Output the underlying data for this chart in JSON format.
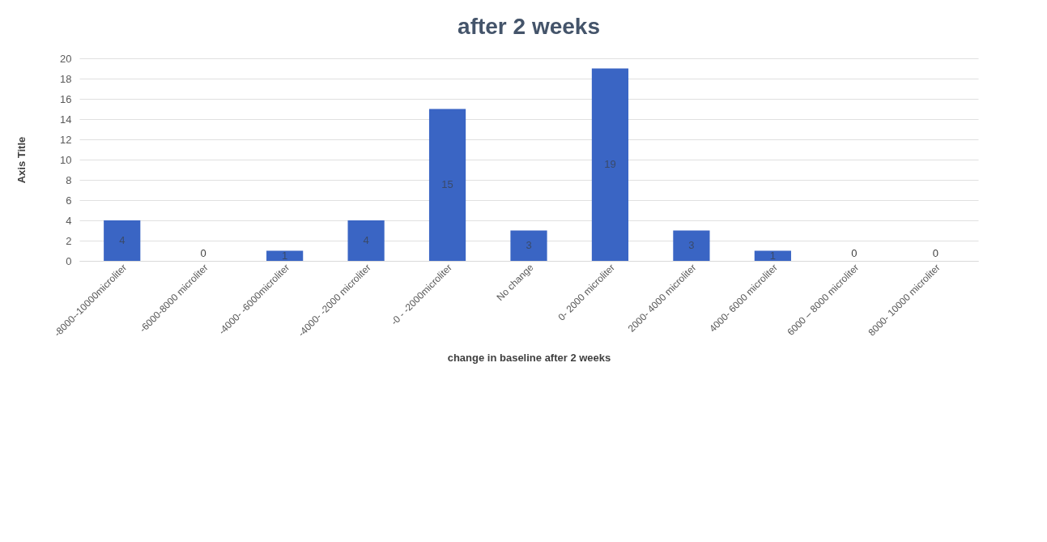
{
  "chart_data": {
    "type": "bar",
    "title": "after 2 weeks",
    "xlabel": "change in baseline after 2 weeks",
    "ylabel": "Axis Title",
    "categories": [
      "-8000--10000microliter",
      "-6000-8000 microliter",
      "-4000- -6000microliter",
      "-4000- -2000 microliter",
      "-0 - -2000microliter",
      "No change",
      "0-   2000 microliter",
      "2000- 4000 microliter",
      "4000- 6000 microliter",
      "6000 – 8000 microliter",
      "8000- 10000 microliter"
    ],
    "values": [
      4,
      0,
      1,
      4,
      15,
      3,
      19,
      3,
      1,
      0,
      0
    ],
    "color": "#3a65c4",
    "ylim": [
      0,
      20
    ],
    "yticks": [
      0,
      2,
      4,
      6,
      8,
      10,
      12,
      14,
      16,
      18,
      20
    ],
    "grid": "y",
    "data_labels": true
  }
}
